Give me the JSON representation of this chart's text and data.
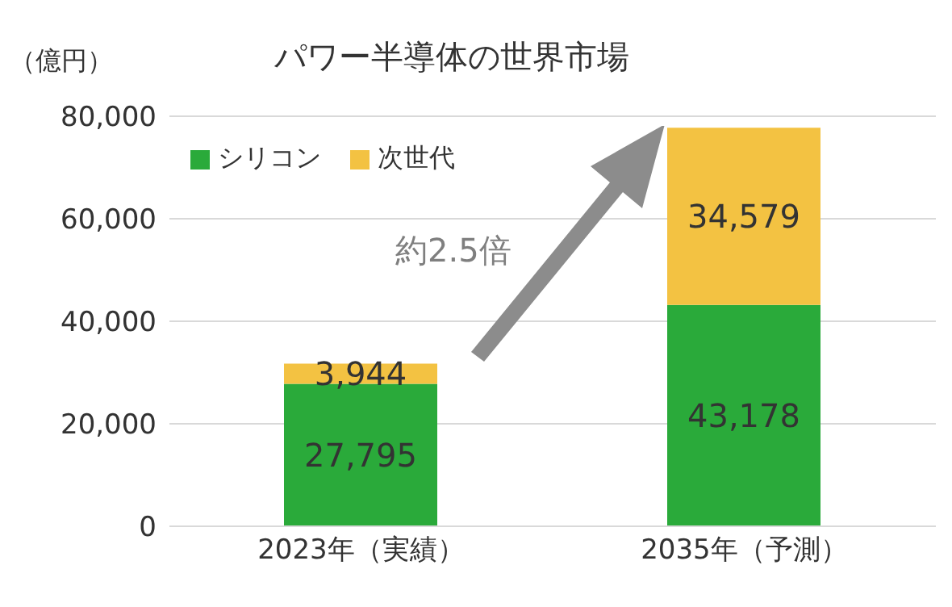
{
  "chart_data": {
    "type": "bar",
    "title": "パワー半導体の世界市場",
    "ylabel": "（億円）",
    "categories": [
      "2023年（実績）",
      "2035年（予測）"
    ],
    "stacked": true,
    "series": [
      {
        "name": "シリコン",
        "color": "#2aaa3a",
        "values": [
          27795,
          43178
        ],
        "value_labels": [
          "27,795",
          "43,178"
        ]
      },
      {
        "name": "次世代",
        "color": "#f3c242",
        "values": [
          3944,
          34579
        ],
        "value_labels": [
          "3,944",
          "34,579"
        ]
      }
    ],
    "ylim": [
      0,
      80000
    ],
    "yticks": [
      0,
      {
        "value": 20000,
        "label": "20,000"
      },
      {
        "value": 40000,
        "label": "40,000"
      },
      {
        "value": 60000,
        "label": "60,000"
      },
      {
        "value": 80000,
        "label": "80,000"
      }
    ],
    "grid": "y",
    "legend": "top left",
    "annotations": [
      "約2.5倍"
    ]
  }
}
